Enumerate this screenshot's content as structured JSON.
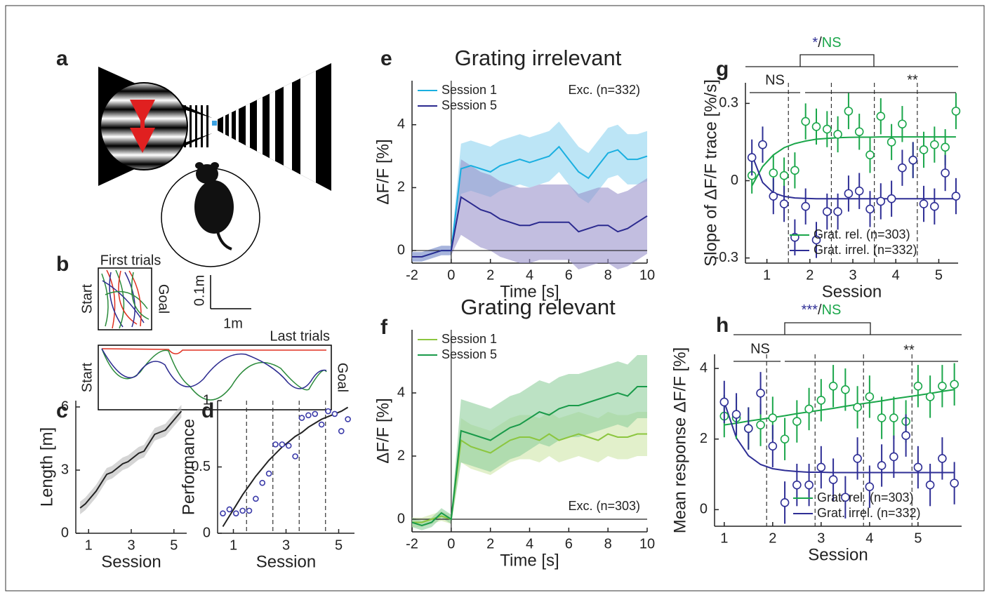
{
  "panel_labels": [
    "a",
    "b",
    "c",
    "d",
    "e",
    "f",
    "g",
    "h"
  ],
  "panel_b": {
    "top_title": "First trials",
    "start": "Start",
    "goal": "Goal",
    "scale_y": "0.1m",
    "scale_x": "1m",
    "bottom_title": "Last trials"
  },
  "chart_data": [
    {
      "type": "line",
      "xlabel": "Session",
      "ylabel": "Length [m]",
      "x": [
        0.6,
        0.85,
        1.1,
        1.35,
        1.6,
        1.85,
        2.1,
        2.35,
        2.6,
        2.85,
        3.1,
        3.35,
        3.6,
        3.85,
        4.1,
        4.35,
        4.6,
        4.85,
        5.1,
        5.35
      ],
      "xlim": [
        0.4,
        5.6
      ],
      "xticks": [
        1,
        3,
        5
      ],
      "ylim": [
        0,
        6.3
      ],
      "yticks": [
        0,
        3,
        6
      ],
      "series": [
        {
          "color": "#222222",
          "band_color": "#b9b9b9",
          "values": [
            1.2,
            1.4,
            1.7,
            2.0,
            2.4,
            2.8,
            2.9,
            3.1,
            3.3,
            3.4,
            3.6,
            3.8,
            3.9,
            4.3,
            4.7,
            4.8,
            4.9,
            5.2,
            5.5,
            5.8
          ],
          "errors": [
            0.3,
            0.3,
            0.3,
            0.3,
            0.3,
            0.3,
            0.3,
            0.3,
            0.3,
            0.3,
            0.3,
            0.3,
            0.3,
            0.3,
            0.3,
            0.3,
            0.3,
            0.3,
            0.3,
            0.3
          ]
        }
      ]
    },
    {
      "type": "scatter",
      "xlabel": "Session",
      "ylabel": "Performance",
      "x": [
        0.6,
        0.85,
        1.1,
        1.35,
        1.6,
        1.85,
        2.1,
        2.35,
        2.6,
        2.85,
        3.1,
        3.35,
        3.6,
        3.85,
        4.1,
        4.35,
        4.6,
        4.85,
        5.1,
        5.35
      ],
      "xlim": [
        0.4,
        5.6
      ],
      "xticks": [
        1,
        3,
        5
      ],
      "ylim": [
        0,
        1
      ],
      "yticks": [
        0,
        0.5,
        1
      ],
      "vlines": [
        1.5,
        2.5,
        3.5,
        4.5
      ],
      "series": [
        {
          "color": "#3a3aa8",
          "values": [
            0.15,
            0.18,
            0.15,
            0.17,
            0.17,
            0.26,
            0.38,
            0.45,
            0.67,
            0.67,
            0.66,
            0.58,
            0.87,
            0.89,
            0.9,
            0.82,
            0.92,
            0.9,
            0.77,
            0.86
          ]
        }
      ],
      "fits": [
        {
          "color": "#222222",
          "values": [
            0.05,
            0.13,
            0.21,
            0.29,
            0.36,
            0.43,
            0.49,
            0.55,
            0.6,
            0.65,
            0.69,
            0.73,
            0.76,
            0.8,
            0.83,
            0.86,
            0.88,
            0.9,
            0.92,
            0.95
          ]
        }
      ]
    },
    {
      "type": "line",
      "title": "Grating irrelevant",
      "xlabel": "Time [s]",
      "ylabel": "ΔF/F [%]",
      "annotation": "Exc. (n=332)",
      "annotation_position": "upper right",
      "legend": "upper left",
      "zero_lines": true,
      "x": [
        -2,
        -1.5,
        -1,
        -0.5,
        0,
        0.5,
        1,
        1.5,
        2,
        2.5,
        3,
        3.5,
        4,
        4.5,
        5,
        5.5,
        6,
        6.5,
        7,
        7.5,
        8,
        8.5,
        9,
        9.5,
        10
      ],
      "xlim": [
        -2,
        10
      ],
      "xticks": [
        -2,
        0,
        2,
        4,
        6,
        8,
        10
      ],
      "ylim": [
        -0.4,
        5.4
      ],
      "yticks": [
        0,
        2,
        4
      ],
      "series": [
        {
          "name": "Session 1",
          "color": "#1aafe0",
          "band_color": "#8fd3f0",
          "values": [
            -0.2,
            -0.2,
            -0.1,
            0,
            0,
            2.6,
            2.7,
            2.6,
            2.5,
            2.7,
            2.8,
            2.9,
            2.8,
            2.9,
            3.0,
            3.3,
            2.9,
            2.5,
            2.3,
            2.7,
            3.1,
            3.2,
            2.9,
            2.9,
            3.0
          ],
          "errors": [
            0.15,
            0.15,
            0.15,
            0.15,
            0.15,
            0.8,
            0.8,
            0.8,
            0.8,
            0.8,
            0.8,
            0.8,
            0.8,
            0.8,
            0.8,
            0.8,
            0.8,
            0.8,
            0.8,
            0.8,
            0.8,
            0.8,
            0.8,
            0.8,
            0.8
          ]
        },
        {
          "name": "Session 5",
          "color": "#2b2a8f",
          "band_color": "#9a93cc",
          "values": [
            -0.2,
            -0.2,
            -0.1,
            0,
            0,
            1.7,
            1.5,
            1.3,
            1.2,
            1.0,
            0.9,
            0.8,
            0.8,
            0.9,
            0.9,
            0.9,
            0.9,
            0.6,
            0.7,
            0.8,
            0.8,
            0.6,
            0.7,
            0.9,
            1.1
          ],
          "errors": [
            0.15,
            0.15,
            0.15,
            0.15,
            0.15,
            1.2,
            1.2,
            1.2,
            1.2,
            1.2,
            1.2,
            1.2,
            1.2,
            1.2,
            1.2,
            1.2,
            1.2,
            1.2,
            1.2,
            1.2,
            1.2,
            1.2,
            1.2,
            1.2,
            1.2
          ]
        }
      ]
    },
    {
      "type": "line",
      "title": "Grating relevant",
      "xlabel": "Time [s]",
      "ylabel": "ΔF/F [%]",
      "annotation": "Exc. (n=303)",
      "annotation_position": "lower right",
      "legend": "upper left",
      "zero_lines": true,
      "x": [
        -2,
        -1.5,
        -1,
        -0.5,
        0,
        0.5,
        1,
        1.5,
        2,
        2.5,
        3,
        3.5,
        4,
        4.5,
        5,
        5.5,
        6,
        6.5,
        7,
        7.5,
        8,
        8.5,
        9,
        9.5,
        10
      ],
      "xlim": [
        -2,
        10
      ],
      "xticks": [
        -2,
        0,
        2,
        4,
        6,
        8,
        10
      ],
      "ylim": [
        -0.4,
        6
      ],
      "yticks": [
        0,
        2,
        4
      ],
      "series": [
        {
          "name": "Session 1",
          "color": "#8cc63f",
          "band_color": "#cfe6a8",
          "values": [
            -0.1,
            -0.1,
            0,
            0.1,
            0,
            2.5,
            2.3,
            2.2,
            2.1,
            2.3,
            2.5,
            2.6,
            2.6,
            2.5,
            2.7,
            2.5,
            2.6,
            2.7,
            2.6,
            2.5,
            2.7,
            2.6,
            2.6,
            2.7,
            2.7
          ],
          "errors": [
            0.15,
            0.15,
            0.15,
            0.15,
            0.15,
            0.7,
            0.7,
            0.7,
            0.7,
            0.7,
            0.7,
            0.7,
            0.7,
            0.7,
            0.7,
            0.7,
            0.7,
            0.7,
            0.7,
            0.7,
            0.7,
            0.7,
            0.7,
            0.7,
            0.7
          ]
        },
        {
          "name": "Session 5",
          "color": "#1a9a4a",
          "band_color": "#8fcf9d",
          "values": [
            -0.1,
            -0.2,
            -0.1,
            0.2,
            0,
            2.8,
            2.7,
            2.6,
            2.5,
            2.7,
            2.9,
            3.0,
            3.2,
            3.4,
            3.3,
            3.5,
            3.6,
            3.6,
            3.7,
            3.8,
            3.9,
            4.0,
            3.9,
            4.2,
            4.2
          ],
          "errors": [
            0.15,
            0.15,
            0.15,
            0.15,
            0.15,
            1.0,
            1.0,
            1.0,
            1.0,
            1.0,
            1.0,
            1.0,
            1.0,
            1.0,
            1.0,
            1.0,
            1.0,
            1.0,
            1.0,
            1.0,
            1.0,
            1.0,
            1.0,
            1.0,
            1.0
          ]
        }
      ]
    },
    {
      "type": "scatter",
      "xlabel": "Session",
      "ylabel": "Slope of ΔF/F trace [%/s]",
      "legend": "lower right",
      "significance": {
        "top": [
          {
            "text": "*",
            "color": "#2e2e95"
          },
          {
            "text": "/"
          },
          {
            "text": "NS",
            "color": "#1aa64a"
          }
        ],
        "left": "NS",
        "right": "**"
      },
      "x": [
        0.65,
        0.9,
        1.15,
        1.4,
        1.65,
        1.9,
        2.15,
        2.4,
        2.65,
        2.9,
        3.15,
        3.4,
        3.65,
        3.9,
        4.15,
        4.4,
        4.65,
        4.9,
        5.15,
        5.4
      ],
      "xlim": [
        0.5,
        5.45
      ],
      "xticks": [
        1,
        2,
        3,
        4,
        5
      ],
      "ylim": [
        -0.32,
        0.38
      ],
      "yticks": [
        -0.3,
        0,
        0.3
      ],
      "vlines": [
        1.5,
        2.5,
        3.5,
        4.5
      ],
      "series": [
        {
          "name": "Grat. rel. (n=303)",
          "color": "#1aa64a",
          "values": [
            0.02,
            0.14,
            0.03,
            0.02,
            0.04,
            0.23,
            0.21,
            0.2,
            0.18,
            0.27,
            0.19,
            0.1,
            0.25,
            0.15,
            0.22,
            0.08,
            0.12,
            0.14,
            0.13,
            0.27
          ],
          "errors": [
            0.07,
            0.07,
            0.07,
            0.07,
            0.07,
            0.07,
            0.07,
            0.07,
            0.07,
            0.07,
            0.07,
            0.07,
            0.07,
            0.07,
            0.07,
            0.07,
            0.07,
            0.07,
            0.07,
            0.07
          ]
        },
        {
          "name": "Grat. irrel. (n=332)",
          "color": "#2e2e95",
          "values": [
            0.09,
            0.14,
            -0.06,
            -0.09,
            -0.22,
            -0.1,
            -0.23,
            -0.12,
            -0.12,
            -0.05,
            -0.04,
            -0.11,
            -0.08,
            -0.07,
            0.05,
            0.08,
            -0.09,
            -0.1,
            0.03,
            -0.06
          ],
          "errors": [
            0.07,
            0.07,
            0.07,
            0.07,
            0.07,
            0.07,
            0.07,
            0.07,
            0.07,
            0.07,
            0.07,
            0.07,
            0.07,
            0.07,
            0.07,
            0.07,
            0.07,
            0.07,
            0.07,
            0.07
          ]
        }
      ],
      "fits": [
        {
          "color": "#1aa64a",
          "values": [
            -0.02,
            0.055,
            0.1,
            0.128,
            0.144,
            0.154,
            0.161,
            0.164,
            0.167,
            0.168,
            0.169,
            0.169,
            0.17,
            0.17,
            0.17,
            0.17,
            0.17,
            0.17,
            0.17,
            0.17
          ]
        },
        {
          "color": "#2e2e95",
          "values": [
            0.1,
            -0.007,
            -0.047,
            -0.061,
            -0.067,
            -0.069,
            -0.07,
            -0.07,
            -0.07,
            -0.07,
            -0.07,
            -0.07,
            -0.07,
            -0.07,
            -0.07,
            -0.07,
            -0.07,
            -0.07,
            -0.07,
            -0.07
          ]
        }
      ]
    },
    {
      "type": "scatter",
      "xlabel": "Session",
      "ylabel": "Mean response ΔF/F [%]",
      "legend": "lower right",
      "significance": {
        "top": [
          {
            "text": "***",
            "color": "#2e2e95"
          },
          {
            "text": "/"
          },
          {
            "text": "NS",
            "color": "#1aa64a"
          }
        ],
        "left": "NS",
        "right": "**"
      },
      "x": [
        1,
        1.25,
        1.5,
        1.75,
        2,
        2.25,
        2.5,
        2.75,
        3,
        3.25,
        3.5,
        3.75,
        4,
        4.25,
        4.5,
        4.75,
        5,
        5.25,
        5.5,
        5.75
      ],
      "xlim": [
        0.8,
        5.9
      ],
      "xticks": [
        1,
        2,
        3,
        4,
        5
      ],
      "ylim": [
        -0.47,
        4.4
      ],
      "yticks": [
        0,
        2,
        4
      ],
      "vlines": [
        1.875,
        2.875,
        3.875,
        4.875
      ],
      "series": [
        {
          "name": "Grat. rel. (n=303)",
          "color": "#1aa64a",
          "values": [
            2.65,
            2.6,
            2.3,
            2.4,
            2.6,
            2.0,
            2.5,
            2.85,
            3.1,
            3.5,
            3.4,
            2.9,
            3.2,
            2.6,
            2.6,
            2.5,
            3.5,
            3.2,
            3.5,
            3.55
          ],
          "errors": [
            0.6,
            0.6,
            0.6,
            0.6,
            0.6,
            0.6,
            0.6,
            0.6,
            0.6,
            0.6,
            0.6,
            0.6,
            0.6,
            0.6,
            0.6,
            0.6,
            0.6,
            0.6,
            0.6,
            0.6
          ]
        },
        {
          "name": "Grat. irrel. (n=332)",
          "color": "#2e2e95",
          "values": [
            3.05,
            2.7,
            2.3,
            3.3,
            1.8,
            0.2,
            0.7,
            0.7,
            1.2,
            0.85,
            0.35,
            1.45,
            0.65,
            1.25,
            1.5,
            2.1,
            1.2,
            0.7,
            1.45,
            0.75
          ],
          "errors": [
            0.6,
            0.6,
            0.6,
            0.6,
            0.6,
            0.6,
            0.6,
            0.6,
            0.6,
            0.6,
            0.6,
            0.6,
            0.6,
            0.6,
            0.6,
            0.6,
            0.6,
            0.6,
            0.6,
            0.6
          ]
        }
      ],
      "fits": [
        {
          "color": "#1aa64a",
          "values": [
            2.4,
            2.45,
            2.51,
            2.56,
            2.61,
            2.66,
            2.72,
            2.77,
            2.82,
            2.87,
            2.93,
            2.98,
            3.03,
            3.08,
            3.14,
            3.19,
            3.24,
            3.29,
            3.35,
            3.4
          ]
        },
        {
          "color": "#2e2e95",
          "values": [
            3.05,
            2.03,
            1.53,
            1.28,
            1.16,
            1.11,
            1.08,
            1.06,
            1.06,
            1.05,
            1.05,
            1.05,
            1.05,
            1.05,
            1.05,
            1.05,
            1.05,
            1.05,
            1.05,
            1.05
          ]
        }
      ]
    }
  ]
}
